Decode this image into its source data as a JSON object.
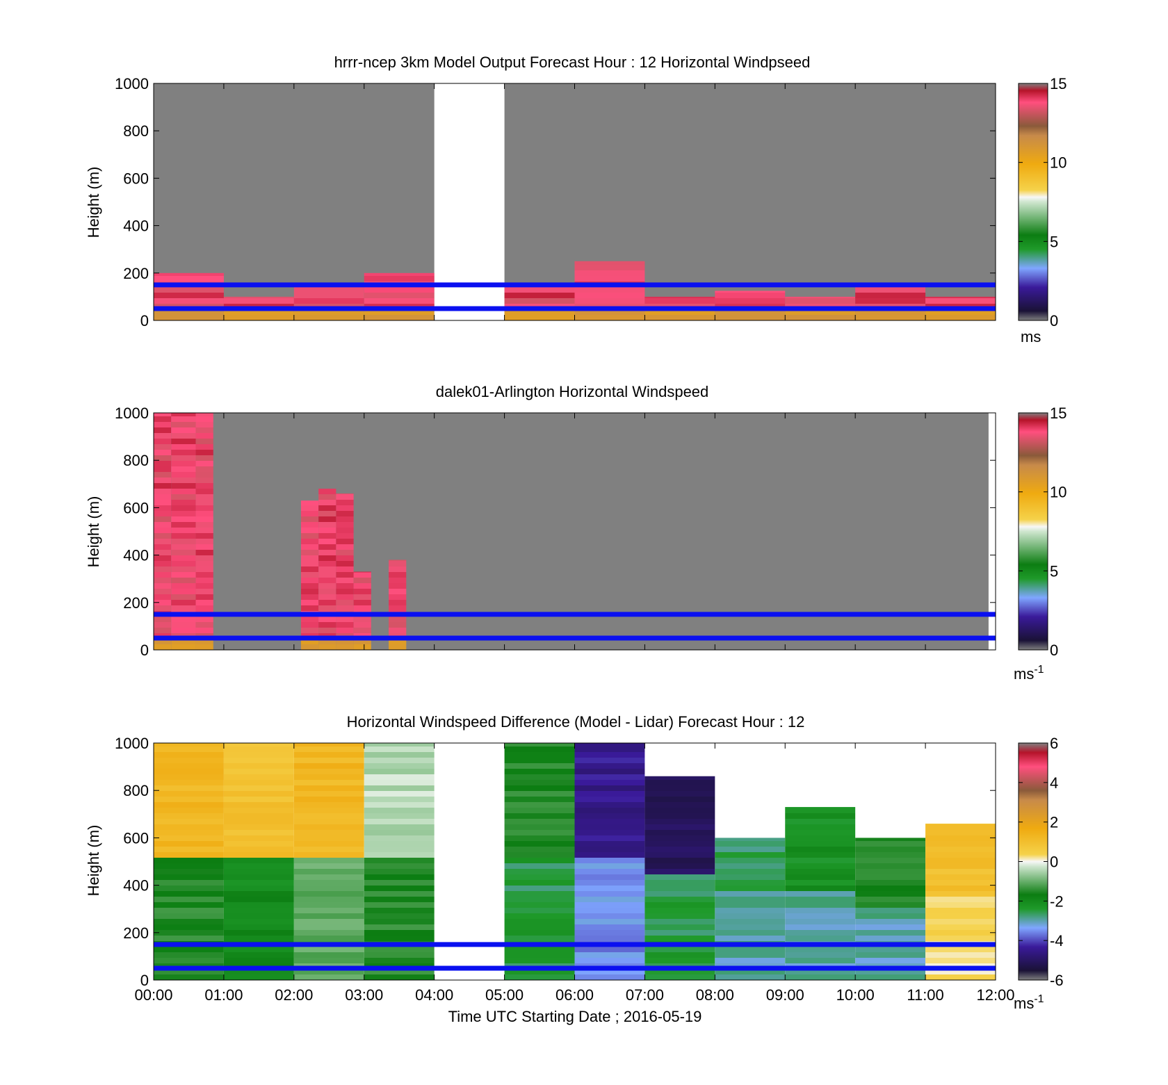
{
  "chart_data": [
    {
      "type": "heatmap",
      "title": "hrrr-ncep 3km Model Output   Forecast Hour : 12 Horizontal Windpseed",
      "ylabel": "Height (m)",
      "xlabel": "",
      "ylim": [
        0,
        1000
      ],
      "yticks": [
        "0",
        "200",
        "400",
        "600",
        "800",
        "1000"
      ],
      "colorbar": {
        "ticks": [
          "0",
          "5",
          "10",
          "15"
        ],
        "range": [
          0,
          15
        ],
        "unit": "ms",
        "unit_sup": "",
        "palette": "speed"
      },
      "reference_lines_m": [
        50,
        150
      ],
      "columns": [
        {
          "start_h": 0,
          "end_h": 1,
          "top_m": 200
        },
        {
          "start_h": 1,
          "end_h": 2,
          "top_m": 100
        },
        {
          "start_h": 2,
          "end_h": 3,
          "top_m": 150
        },
        {
          "start_h": 3,
          "end_h": 4,
          "top_m": 200
        },
        {
          "start_h": 5,
          "end_h": 6,
          "top_m": 150
        },
        {
          "start_h": 6,
          "end_h": 7,
          "top_m": 250
        },
        {
          "start_h": 7,
          "end_h": 8,
          "top_m": 100
        },
        {
          "start_h": 8,
          "end_h": 9,
          "top_m": 125
        },
        {
          "start_h": 9,
          "end_h": 10,
          "top_m": 100
        },
        {
          "start_h": 10,
          "end_h": 11,
          "top_m": 150
        },
        {
          "start_h": 11,
          "end_h": 12,
          "top_m": 100
        }
      ],
      "missing_hours": [
        [
          4,
          5
        ]
      ]
    },
    {
      "type": "heatmap",
      "title": "dalek01-Arlington  Horizontal Windspeed",
      "ylabel": "Height (m)",
      "xlabel": "",
      "ylim": [
        0,
        1000
      ],
      "yticks": [
        "0",
        "200",
        "400",
        "600",
        "800",
        "1000"
      ],
      "colorbar": {
        "ticks": [
          "0",
          "5",
          "10",
          "15"
        ],
        "range": [
          0,
          15
        ],
        "unit": "ms",
        "unit_sup": "-1",
        "palette": "speed"
      },
      "reference_lines_m": [
        50,
        150
      ],
      "columns": [
        {
          "start_h": 0,
          "end_h": 0.25,
          "top_m": 1000
        },
        {
          "start_h": 0.25,
          "end_h": 0.6,
          "top_m": 1000
        },
        {
          "start_h": 0.6,
          "end_h": 0.85,
          "top_m": 1000
        },
        {
          "start_h": 2.1,
          "end_h": 2.35,
          "top_m": 630
        },
        {
          "start_h": 2.35,
          "end_h": 2.6,
          "top_m": 680
        },
        {
          "start_h": 2.6,
          "end_h": 2.85,
          "top_m": 660
        },
        {
          "start_h": 2.85,
          "end_h": 3.1,
          "top_m": 330
        },
        {
          "start_h": 3.35,
          "end_h": 3.6,
          "top_m": 380
        }
      ],
      "missing_hours": [
        [
          11.9,
          12
        ]
      ]
    },
    {
      "type": "heatmap",
      "title": "Horizontal Windspeed Difference (Model - Lidar) Forecast Hour : 12",
      "ylabel": "Height (m)",
      "xlabel": "Time UTC  Starting Date ; 2016-05-19",
      "ylim": [
        0,
        1000
      ],
      "yticks": [
        "0",
        "200",
        "400",
        "600",
        "800",
        "1000"
      ],
      "xticks": [
        "00:00",
        "01:00",
        "02:00",
        "03:00",
        "04:00",
        "05:00",
        "06:00",
        "07:00",
        "08:00",
        "09:00",
        "10:00",
        "11:00",
        "12:00"
      ],
      "colorbar": {
        "ticks": [
          "-6",
          "-4",
          "-2",
          "0",
          "2",
          "4",
          "6"
        ],
        "range": [
          -6,
          6
        ],
        "unit": "ms",
        "unit_sup": "-1",
        "palette": "diff"
      },
      "reference_lines_m": [
        50,
        150
      ],
      "columns": [
        {
          "start_h": 0,
          "end_h": 1,
          "top_m": 1000,
          "upper_value": 1.5,
          "lower_value": -1.5
        },
        {
          "start_h": 1,
          "end_h": 2,
          "top_m": 1000,
          "upper_value": 1.2,
          "lower_value": -2
        },
        {
          "start_h": 2,
          "end_h": 3,
          "top_m": 1000,
          "upper_value": 1.5,
          "lower_value": -1
        },
        {
          "start_h": 3,
          "end_h": 4,
          "top_m": 1000,
          "upper_value": -0.2,
          "lower_value": -1.5
        },
        {
          "start_h": 5,
          "end_h": 6,
          "top_m": 1000,
          "upper_value": -1.5,
          "lower_value": -2.5
        },
        {
          "start_h": 6,
          "end_h": 7,
          "top_m": 1000,
          "upper_value": -4.5,
          "lower_value": -3.5
        },
        {
          "start_h": 7,
          "end_h": 8,
          "top_m": 860,
          "upper_value": -5,
          "lower_value": -2.5
        },
        {
          "start_h": 8,
          "end_h": 9,
          "top_m": 600,
          "upper_value": -2.7,
          "lower_value": -3
        },
        {
          "start_h": 9,
          "end_h": 10,
          "top_m": 730,
          "upper_value": -2.2,
          "lower_value": -3
        },
        {
          "start_h": 10,
          "end_h": 11,
          "top_m": 600,
          "upper_value": -1.5,
          "lower_value": -3
        },
        {
          "start_h": 11,
          "end_h": 12,
          "top_m": 660,
          "upper_value": 1.2,
          "lower_value": 0.5
        }
      ],
      "missing_hours": [
        [
          4,
          5
        ]
      ]
    }
  ]
}
